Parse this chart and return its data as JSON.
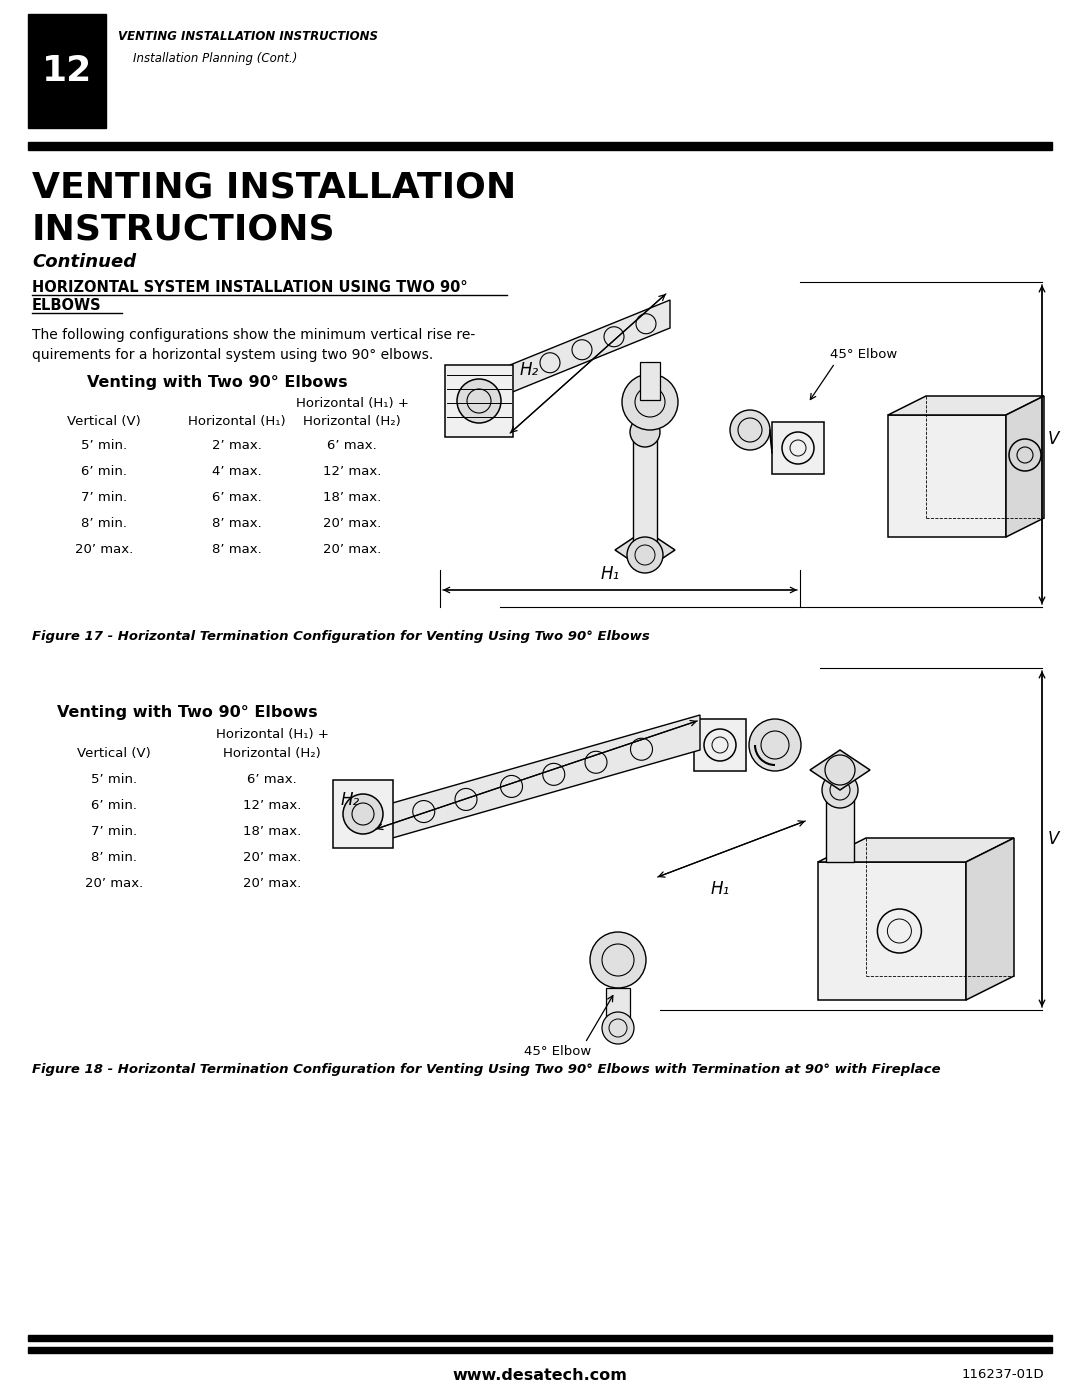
{
  "page_width": 10.8,
  "page_height": 13.97,
  "dpi": 100,
  "bg": "#ffffff",
  "black": "#000000",
  "header_num": "12",
  "header_bold": "VENTING INSTALLATION INSTRUCTIONS",
  "header_italic": "    Installation Planning (Cont.)",
  "title1": "VENTING INSTALLATION",
  "title2": "INSTRUCTIONS",
  "title3": "Continued",
  "heading1": "HORIZONTAL SYSTEM INSTALLATION USING TWO 90°",
  "heading2": "ELBOWS",
  "body": "The following configurations show the minimum vertical rise re-\nquirements for a horizontal system using two 90° elbows.",
  "tbl1_title": "Venting with Two 90° Elbows",
  "tbl1_ch3a": "Horizontal (H₁) +",
  "tbl1_ch1": "Vertical (V)",
  "tbl1_ch2": "Horizontal (H₁)",
  "tbl1_ch3b": "Horizontal (H₂)",
  "tbl1": [
    [
      "5’ min.",
      "2’ max.",
      "6’ max."
    ],
    [
      "6’ min.",
      "4’ max.",
      "12’ max."
    ],
    [
      "7’ min.",
      "6’ max.",
      "18’ max."
    ],
    [
      "8’ min.",
      "8’ max.",
      "20’ max."
    ],
    [
      "20’ max.",
      "8’ max.",
      "20’ max."
    ]
  ],
  "fig17_cap": "Figure 17 - Horizontal Termination Configuration for Venting Using Two 90° Elbows",
  "tbl2_title": "Venting with Two 90° Elbows",
  "tbl2_ch2a": "Horizontal (H₁) +",
  "tbl2_ch1": "Vertical (V)",
  "tbl2_ch2b": "Horizontal (H₂)",
  "tbl2": [
    [
      "5’ min.",
      "6’ max."
    ],
    [
      "6’ min.",
      "12’ max."
    ],
    [
      "7’ min.",
      "18’ max."
    ],
    [
      "8’ min.",
      "20’ max."
    ],
    [
      "20’ max.",
      "20’ max."
    ]
  ],
  "fig18_cap": "Figure 18 - Horizontal Termination Configuration for Venting Using Two 90° Elbows with Termination at 90° with Fireplace",
  "footer_web": "www.desatech.com",
  "footer_code": "116237-01D",
  "v_label": "V",
  "h1_label": "H₁",
  "h2_label": "H₂",
  "elbow_lbl": "45° Elbow"
}
